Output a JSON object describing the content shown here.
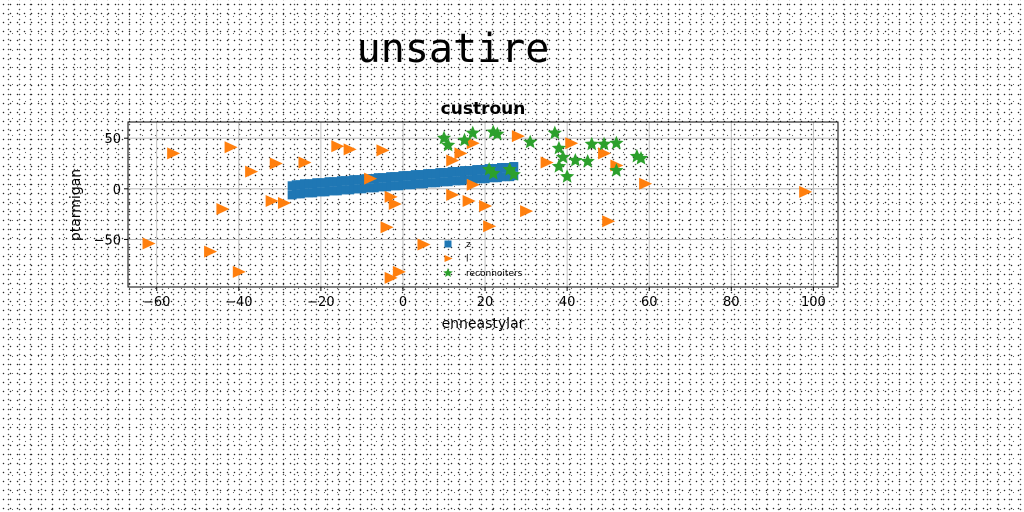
{
  "headline": "unsatire",
  "chart_data": {
    "type": "scatter",
    "title": "custroun",
    "xlabel": "enneastylar",
    "ylabel": "ptarmigan",
    "xlim": [
      -67,
      106
    ],
    "ylim": [
      -97,
      66
    ],
    "xticks": [
      -60,
      -40,
      -20,
      0,
      20,
      40,
      60,
      80,
      100
    ],
    "yticks": [
      -50,
      0,
      50
    ],
    "grid": true,
    "legend_position": "lower-center",
    "series": [
      {
        "name": "z",
        "marker": "square",
        "color": "#1f77b4",
        "points": [
          [
            -27,
            3
          ],
          [
            -26,
            4
          ],
          [
            -25,
            4
          ],
          [
            -24,
            5
          ],
          [
            -23,
            5
          ],
          [
            -22,
            5
          ],
          [
            -21,
            6
          ],
          [
            -20,
            6
          ],
          [
            -19,
            6
          ],
          [
            -18,
            7
          ],
          [
            -17,
            7
          ],
          [
            -16,
            7
          ],
          [
            -15,
            8
          ],
          [
            -14,
            8
          ],
          [
            -13,
            8
          ],
          [
            -12,
            9
          ],
          [
            -11,
            9
          ],
          [
            -10,
            9
          ],
          [
            -9,
            10
          ],
          [
            -8,
            10
          ],
          [
            -7,
            10
          ],
          [
            -6,
            11
          ],
          [
            -5,
            11
          ],
          [
            -4,
            11
          ],
          [
            -3,
            12
          ],
          [
            -2,
            12
          ],
          [
            -1,
            12
          ],
          [
            0,
            13
          ],
          [
            1,
            13
          ],
          [
            2,
            13
          ],
          [
            3,
            14
          ],
          [
            4,
            14
          ],
          [
            5,
            14
          ],
          [
            6,
            15
          ],
          [
            7,
            15
          ],
          [
            8,
            15
          ],
          [
            9,
            16
          ],
          [
            10,
            16
          ],
          [
            11,
            16
          ],
          [
            12,
            17
          ],
          [
            13,
            17
          ],
          [
            14,
            17
          ],
          [
            15,
            18
          ],
          [
            16,
            18
          ],
          [
            17,
            18
          ],
          [
            18,
            19
          ],
          [
            19,
            19
          ],
          [
            20,
            19
          ],
          [
            21,
            20
          ],
          [
            22,
            20
          ],
          [
            23,
            20
          ],
          [
            24,
            21
          ],
          [
            25,
            21
          ],
          [
            26,
            21
          ],
          [
            27,
            22
          ],
          [
            -27,
            -6
          ],
          [
            -26,
            -5
          ],
          [
            -25,
            -5
          ],
          [
            -24,
            -4
          ],
          [
            -23,
            -4
          ],
          [
            -22,
            -4
          ],
          [
            -21,
            -3
          ],
          [
            -20,
            -3
          ],
          [
            -19,
            -3
          ],
          [
            -18,
            -2
          ],
          [
            -17,
            -2
          ],
          [
            -16,
            -2
          ],
          [
            -15,
            -1
          ],
          [
            -14,
            -1
          ],
          [
            -13,
            -1
          ],
          [
            -12,
            0
          ],
          [
            -11,
            0
          ],
          [
            -10,
            0
          ],
          [
            -9,
            1
          ],
          [
            -8,
            1
          ],
          [
            -7,
            1
          ],
          [
            -6,
            2
          ],
          [
            -5,
            2
          ],
          [
            -4,
            2
          ],
          [
            -3,
            3
          ],
          [
            -2,
            3
          ],
          [
            -1,
            3
          ],
          [
            0,
            4
          ],
          [
            1,
            4
          ],
          [
            2,
            4
          ],
          [
            3,
            5
          ],
          [
            4,
            5
          ],
          [
            5,
            5
          ],
          [
            6,
            6
          ],
          [
            7,
            6
          ],
          [
            8,
            6
          ],
          [
            9,
            7
          ],
          [
            10,
            7
          ],
          [
            11,
            7
          ],
          [
            12,
            8
          ],
          [
            13,
            8
          ],
          [
            14,
            8
          ],
          [
            15,
            9
          ],
          [
            16,
            9
          ],
          [
            17,
            9
          ],
          [
            18,
            10
          ],
          [
            19,
            10
          ],
          [
            20,
            10
          ],
          [
            21,
            11
          ],
          [
            22,
            11
          ],
          [
            23,
            11
          ],
          [
            24,
            12
          ],
          [
            25,
            12
          ],
          [
            26,
            12
          ],
          [
            27,
            13
          ]
        ]
      },
      {
        "name": "l",
        "marker": "triangle-right",
        "color": "#ff7f0e",
        "points": [
          [
            -56,
            35
          ],
          [
            -42,
            41
          ],
          [
            -37,
            17
          ],
          [
            -31,
            25
          ],
          [
            -24,
            26
          ],
          [
            -16,
            42
          ],
          [
            -13,
            39
          ],
          [
            -5,
            38
          ],
          [
            -44,
            -20
          ],
          [
            -32,
            -12
          ],
          [
            -29,
            -14
          ],
          [
            -62,
            -54
          ],
          [
            -47,
            -62
          ],
          [
            -40,
            -82
          ],
          [
            -8,
            10
          ],
          [
            -3,
            -8
          ],
          [
            -2,
            -15
          ],
          [
            -4,
            -38
          ],
          [
            -3,
            -88
          ],
          [
            -1,
            -82
          ],
          [
            5,
            -55
          ],
          [
            12,
            -6
          ],
          [
            12,
            28
          ],
          [
            14,
            35
          ],
          [
            17,
            45
          ],
          [
            17,
            4
          ],
          [
            16,
            -12
          ],
          [
            20,
            -17
          ],
          [
            21,
            -37
          ],
          [
            28,
            52
          ],
          [
            30,
            -22
          ],
          [
            35,
            26
          ],
          [
            41,
            45
          ],
          [
            49,
            35
          ],
          [
            50,
            -32
          ],
          [
            52,
            23
          ],
          [
            59,
            5
          ],
          [
            98,
            -3
          ]
        ]
      },
      {
        "name": "reconnoiters",
        "marker": "star",
        "color": "#2ca02c",
        "points": [
          [
            10,
            50
          ],
          [
            11,
            43
          ],
          [
            15,
            48
          ],
          [
            17,
            55
          ],
          [
            22,
            56
          ],
          [
            23,
            54
          ],
          [
            22,
            15
          ],
          [
            27,
            14
          ],
          [
            31,
            46
          ],
          [
            37,
            55
          ],
          [
            38,
            40
          ],
          [
            39,
            31
          ],
          [
            38,
            22
          ],
          [
            40,
            12
          ],
          [
            42,
            28
          ],
          [
            45,
            27
          ],
          [
            46,
            44
          ],
          [
            49,
            44
          ],
          [
            52,
            45
          ],
          [
            52,
            18
          ],
          [
            57,
            32
          ],
          [
            58,
            30
          ],
          [
            21,
            19
          ],
          [
            26,
            19
          ]
        ]
      }
    ]
  }
}
